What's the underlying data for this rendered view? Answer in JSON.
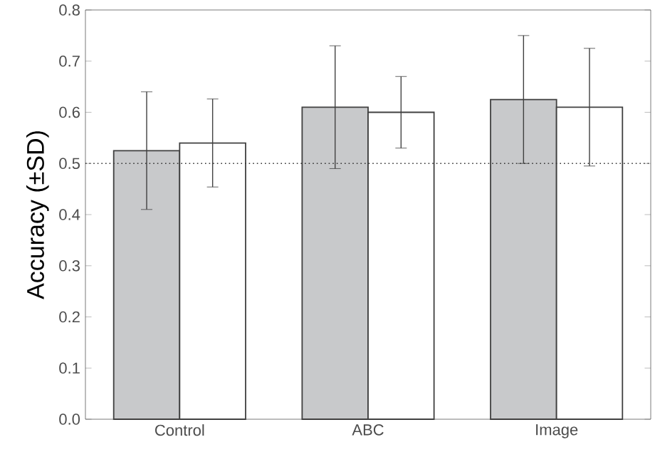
{
  "chart_data": {
    "type": "bar",
    "ylabel": "Accuracy (±SD)",
    "categories": [
      "Control",
      "ABC",
      "Image"
    ],
    "series": [
      {
        "color": "#c8c9cb",
        "values": [
          0.525,
          0.61,
          0.625
        ],
        "errors": [
          0.115,
          0.12,
          0.125
        ]
      },
      {
        "color": "#ffffff",
        "values": [
          0.54,
          0.6,
          0.61
        ],
        "errors": [
          0.086,
          0.07,
          0.115
        ]
      }
    ],
    "ylim": [
      0,
      0.8
    ],
    "yticks": [
      {
        "value": 0,
        "label": "0.0"
      },
      0.1,
      0.2,
      0.3,
      0.4,
      0.5,
      0.6,
      0.7,
      0.8
    ],
    "ref_lines": [
      {
        "axis": "y",
        "value": 0.5,
        "line_style": "dotted"
      }
    ]
  }
}
